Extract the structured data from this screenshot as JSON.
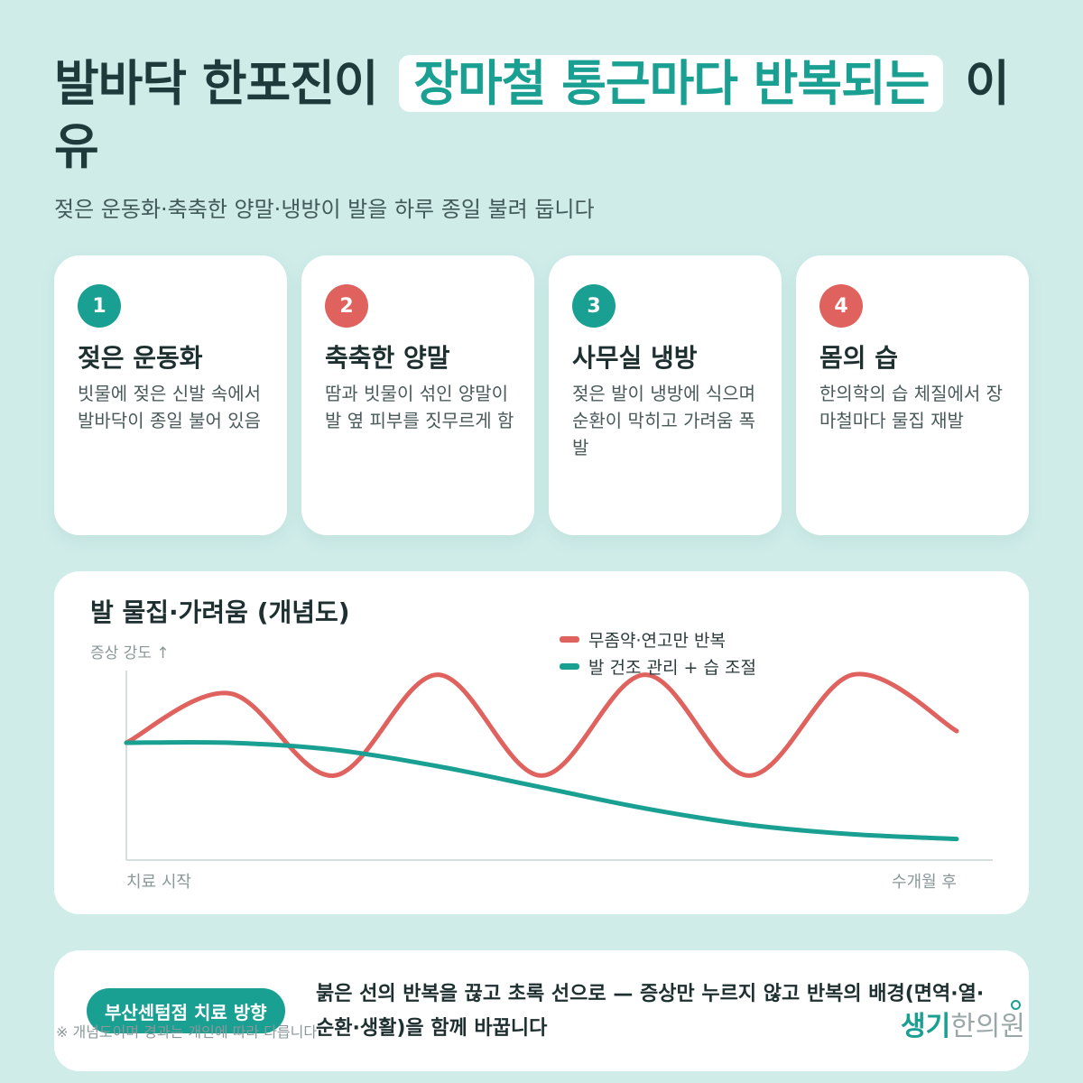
{
  "title": {
    "part1": "발바닥 한포진이",
    "highlight": "장마철 통근마다 반복되는",
    "part2": "이유"
  },
  "subtitle": "젖은 운동화·축축한 양말·냉방이 발을 하루 종일 불려 둡니다",
  "cards": [
    {
      "num": "1",
      "title": "젖은 운동화",
      "desc": "빗물에 젖은 신발 속에서 발바닥이 종일 불어 있음",
      "color": "#1aa092"
    },
    {
      "num": "2",
      "title": "축축한 양말",
      "desc": "땀과 빗물이 섞인 양말이 발 옆 피부를 짓무르게 함",
      "color": "#e0625e"
    },
    {
      "num": "3",
      "title": "사무실 냉방",
      "desc": "젖은 발이 냉방에 식으며 순환이 막히고 가려움 폭발",
      "color": "#1aa092"
    },
    {
      "num": "4",
      "title": "몸의 습",
      "desc": "한의학의 습 체질에서 장마철마다 물집 재발",
      "color": "#e0625e"
    }
  ],
  "chart_data": {
    "type": "line",
    "title": "발 물집·가려움 (개념도)",
    "ylabel": "증상 강도 ↑",
    "x_start_label": "치료 시작",
    "x_end_label": "수개월 후",
    "legend_placement": "top-right",
    "grid": false,
    "series": [
      {
        "name": "무좀약·연고만 반복",
        "color": "#e0625e",
        "values": [
          0.5,
          0.71,
          0.36,
          0.79,
          0.36,
          0.79,
          0.36,
          0.79,
          0.55
        ]
      },
      {
        "name": "발 건조 관리 + 습 조절",
        "color": "#1aa092",
        "values": [
          0.5,
          0.5,
          0.47,
          0.4,
          0.31,
          0.22,
          0.15,
          0.11,
          0.09
        ]
      }
    ]
  },
  "bottom": {
    "badge": "부산센텀점 치료 방향",
    "text": "붉은 선의 반복을 끊고 초록 선으로 — 증상만 누르지 않고 반복의 배경(면역·열·순환·생활)을 함께 바꿉니다"
  },
  "footnote": "※ 개념도이며 경과는 개인에 따라 다릅니다",
  "logo": {
    "part1": "생기",
    "part2": "한의원"
  }
}
